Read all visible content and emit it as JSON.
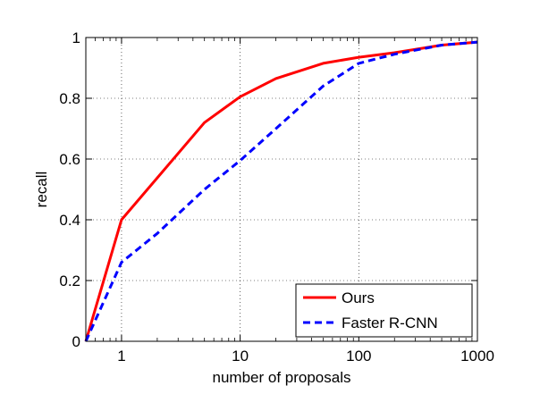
{
  "chart_data": {
    "type": "line",
    "title": "",
    "xlabel": "number of proposals",
    "ylabel": "recall",
    "x_scale": "log",
    "xlim": [
      0.5,
      1000
    ],
    "ylim": [
      0,
      1
    ],
    "grid": true,
    "legend_position": "bottom-right",
    "x_ticks": [
      {
        "value": 1,
        "label": "1"
      },
      {
        "value": 10,
        "label": "10"
      },
      {
        "value": 100,
        "label": "100"
      },
      {
        "value": 1000,
        "label": "1000"
      }
    ],
    "y_ticks": [
      {
        "value": 0,
        "label": "0"
      },
      {
        "value": 0.2,
        "label": "0.2"
      },
      {
        "value": 0.4,
        "label": "0.4"
      },
      {
        "value": 0.6,
        "label": "0.6"
      },
      {
        "value": 0.8,
        "label": "0.8"
      },
      {
        "value": 1,
        "label": "1"
      }
    ],
    "series": [
      {
        "name": "Ours",
        "color": "#ff0000",
        "style": "solid",
        "points": [
          [
            0.5,
            0
          ],
          [
            1,
            0.4
          ],
          [
            5,
            0.72
          ],
          [
            10,
            0.805
          ],
          [
            20,
            0.865
          ],
          [
            50,
            0.915
          ],
          [
            100,
            0.935
          ],
          [
            200,
            0.95
          ],
          [
            500,
            0.975
          ],
          [
            1000,
            0.985
          ]
        ]
      },
      {
        "name": "Faster R-CNN",
        "color": "#0000ff",
        "style": "dashed",
        "points": [
          [
            0.5,
            0
          ],
          [
            1,
            0.26
          ],
          [
            2,
            0.355
          ],
          [
            5,
            0.5
          ],
          [
            10,
            0.595
          ],
          [
            20,
            0.7
          ],
          [
            50,
            0.84
          ],
          [
            100,
            0.915
          ],
          [
            200,
            0.945
          ],
          [
            500,
            0.975
          ],
          [
            1000,
            0.985
          ]
        ]
      }
    ]
  }
}
